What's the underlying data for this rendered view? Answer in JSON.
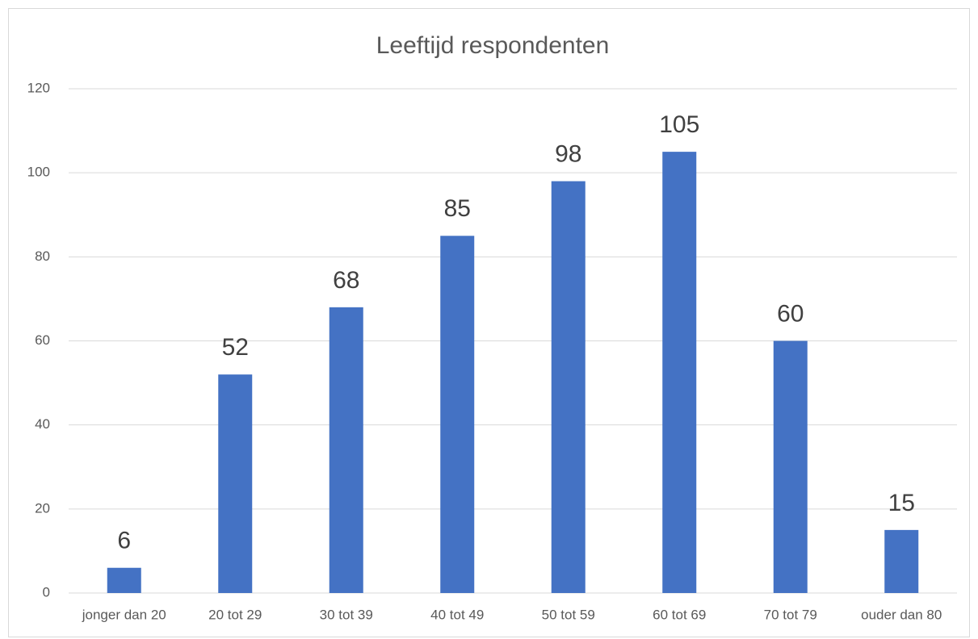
{
  "chart_data": {
    "type": "bar",
    "title": "Leeftijd respondenten",
    "categories": [
      "jonger dan 20",
      "20 tot 29",
      "30 tot 39",
      "40 tot 49",
      "50 tot 59",
      "60 tot 69",
      "70 tot 79",
      "ouder dan 80"
    ],
    "values": [
      6,
      52,
      68,
      85,
      98,
      105,
      60,
      15
    ],
    "color": "#4472c4",
    "ylim": [
      0,
      120
    ],
    "yticks": [
      0,
      20,
      40,
      60,
      80,
      100,
      120
    ],
    "grid": true
  }
}
